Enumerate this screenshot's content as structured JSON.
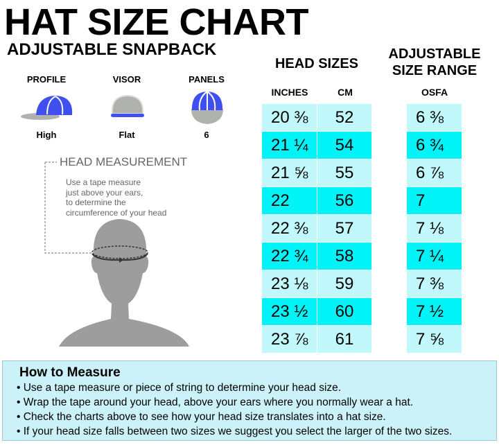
{
  "title": "HAT SIZE CHART",
  "subtitle": "ADJUSTABLE SNAPBACK",
  "attributes": [
    {
      "label": "PROFILE",
      "value": "High",
      "icon": "cap-profile-icon"
    },
    {
      "label": "VISOR",
      "value": "Flat",
      "icon": "cap-visor-icon"
    },
    {
      "label": "PANELS",
      "value": "6",
      "icon": "cap-panels-icon"
    }
  ],
  "head_measurement": {
    "title": "HEAD MEASUREMENT",
    "text": "Use a tape measure\njust above your ears,\nto determine the\ncircumference of your head"
  },
  "head_sizes": {
    "title": "HEAD SIZES",
    "columns": [
      "INCHES",
      "CM"
    ],
    "rows": [
      [
        "20 ⅜",
        "52"
      ],
      [
        "21 ¼",
        "54"
      ],
      [
        "21 ⅝",
        "55"
      ],
      [
        "22",
        "56"
      ],
      [
        "22 ⅜",
        "57"
      ],
      [
        "22 ¾",
        "58"
      ],
      [
        "23 ⅛",
        "59"
      ],
      [
        "23 ½",
        "60"
      ],
      [
        "23 ⅞",
        "61"
      ]
    ]
  },
  "adjustable": {
    "title_line1": "ADJUSTABLE",
    "title_line2": "SIZE RANGE",
    "column": "OSFA",
    "rows": [
      "6 ⅜",
      "6 ¾",
      "6 ⅞",
      "7",
      "7 ⅛",
      "7 ¼",
      "7 ⅜",
      "7 ½",
      "7 ⅝"
    ]
  },
  "how_to": {
    "title": "How to Measure",
    "items": [
      "• Use a tape measure or piece of string to determine your head size.",
      "• Wrap the tape around your head, above your ears where you normally wear a hat.",
      "• Check the charts above to see how your head size translates into a hat size.",
      "• If your head size falls between two sizes we suggest you select the larger of the two sizes."
    ]
  },
  "colors": {
    "row_light": "#c0f8fb",
    "row_dark": "#00f3f6",
    "cap_blue": "#3f4ff0",
    "cap_gray": "#b0b2ad",
    "box_bg": "#ccf2f9"
  }
}
